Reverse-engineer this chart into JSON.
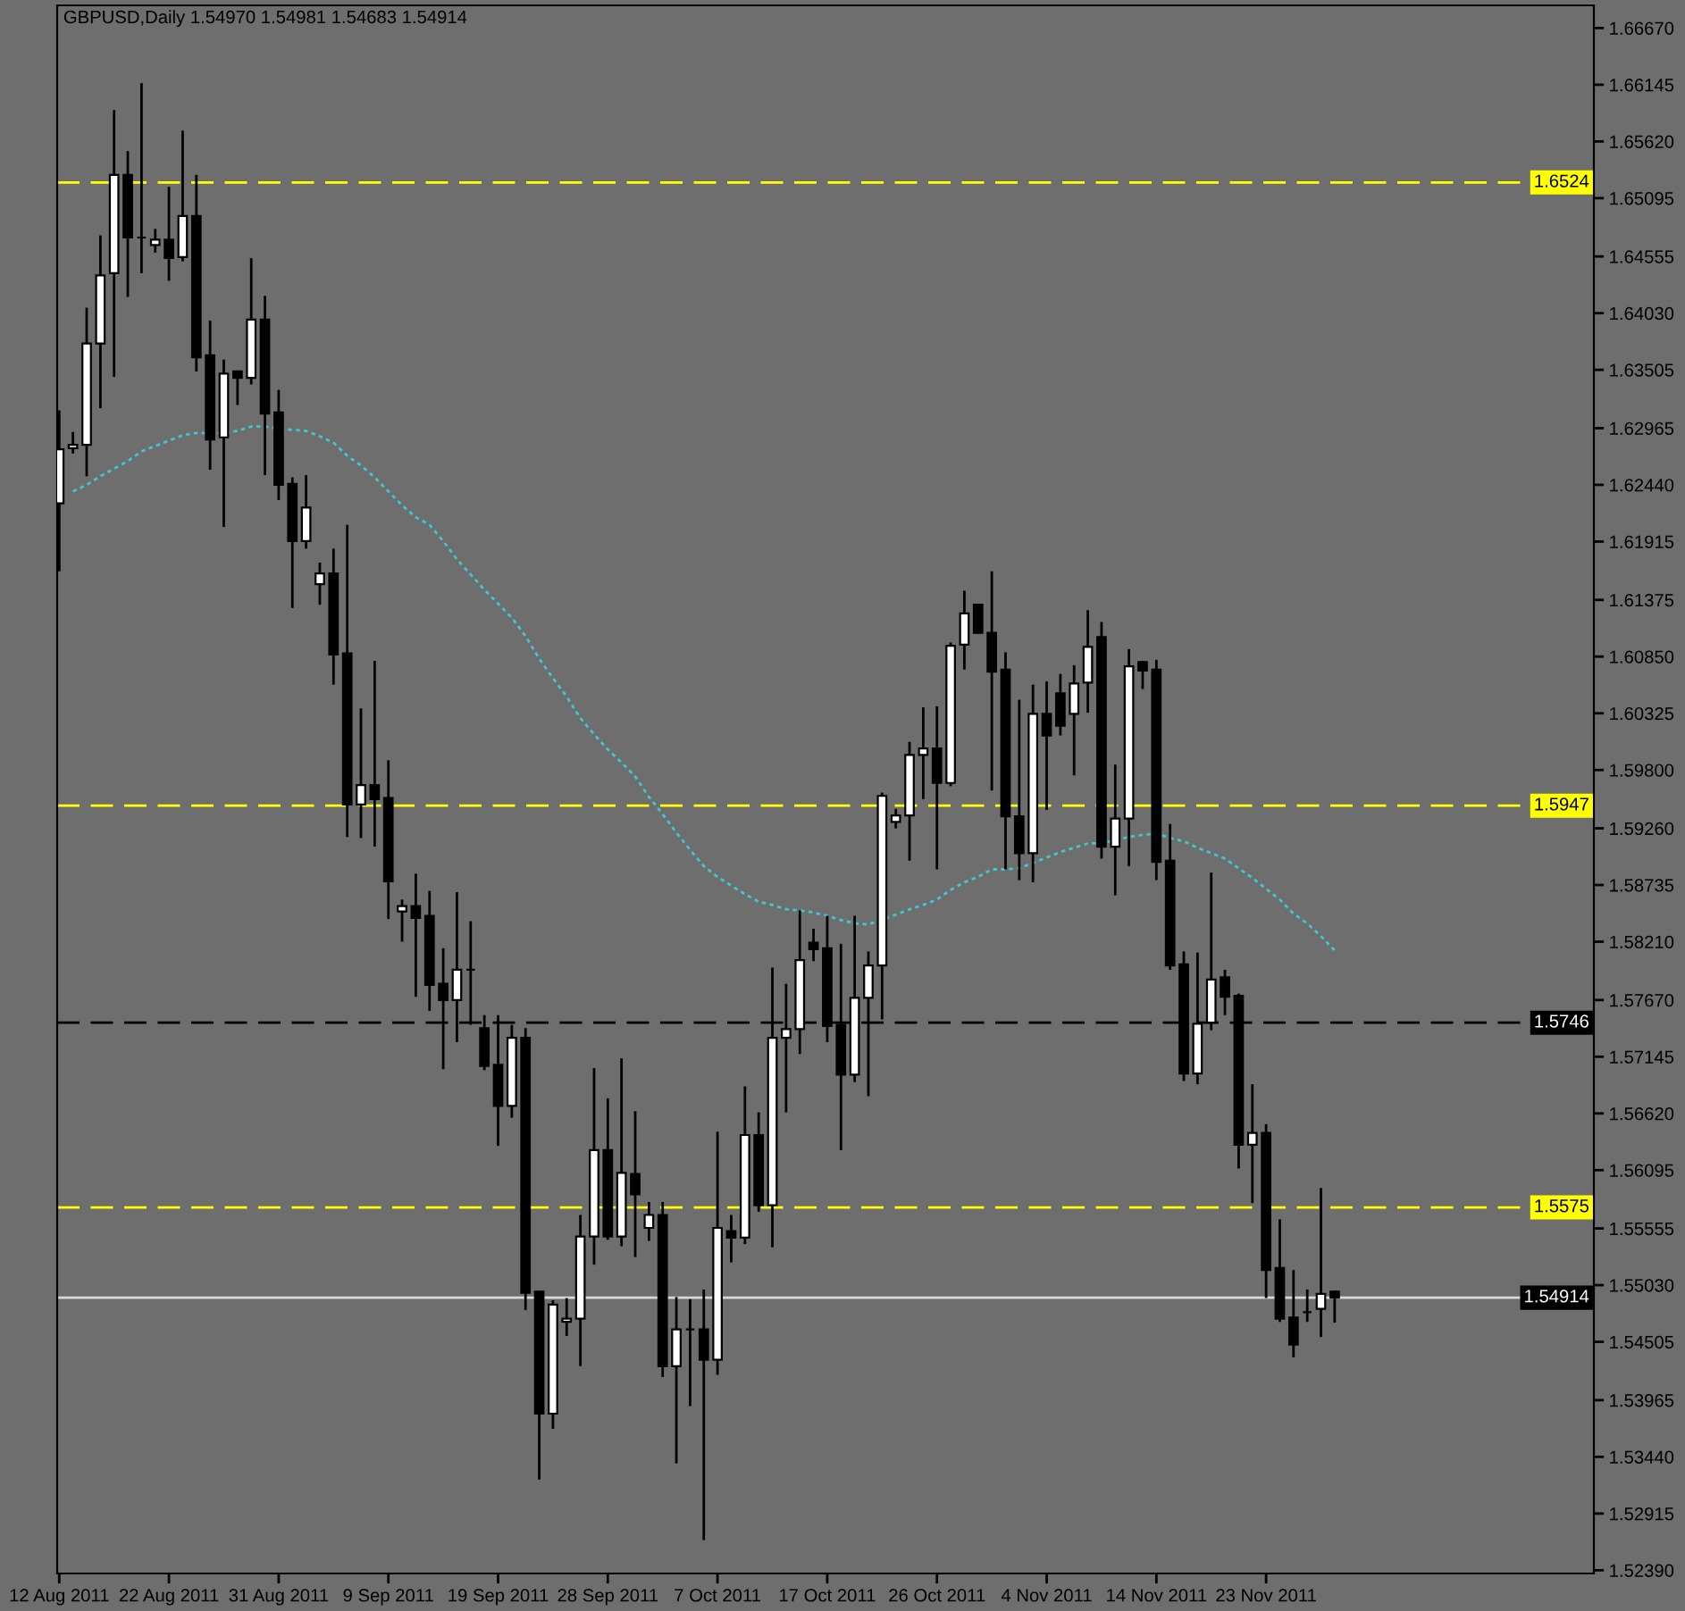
{
  "chart_data": {
    "type": "candlestick",
    "title": "GBPUSD,Daily 1.54970 1.54981 1.54683 1.54914",
    "categories": [
      "12 Aug 2011",
      null,
      null,
      null,
      null,
      null,
      null,
      null,
      "22 Aug 2011",
      null,
      null,
      null,
      null,
      null,
      null,
      null,
      "31 Aug 2011",
      null,
      null,
      null,
      null,
      null,
      null,
      null,
      "9 Sep 2011",
      null,
      null,
      null,
      null,
      null,
      null,
      null,
      "19 Sep 2011",
      null,
      null,
      null,
      null,
      null,
      null,
      null,
      "28 Sep 2011",
      null,
      null,
      null,
      null,
      null,
      null,
      null,
      "7 Oct 2011",
      null,
      null,
      null,
      null,
      null,
      null,
      null,
      "17 Oct 2011",
      null,
      null,
      null,
      null,
      null,
      null,
      null,
      "26 Oct 2011",
      null,
      null,
      null,
      null,
      null,
      null,
      null,
      "4 Nov 2011",
      null,
      null,
      null,
      null,
      null,
      null,
      null,
      "14 Nov 2011",
      null,
      null,
      null,
      null,
      null,
      null,
      null,
      "23 Nov 2011",
      null,
      null,
      null,
      null,
      null
    ],
    "ohlc": [
      [
        1.6227,
        1.6313,
        1.6164,
        1.6277
      ],
      [
        1.6278,
        1.6293,
        1.6273,
        1.6281
      ],
      [
        1.6281,
        1.6408,
        1.6252,
        1.6375
      ],
      [
        1.6375,
        1.6475,
        1.6315,
        1.6438
      ],
      [
        1.644,
        1.6591,
        1.6344,
        1.6531
      ],
      [
        1.6531,
        1.6553,
        1.6418,
        1.6473
      ],
      [
        1.6473,
        1.6616,
        1.644,
        1.6473
      ],
      [
        1.6466,
        1.6481,
        1.6459,
        1.6471
      ],
      [
        1.6471,
        1.652,
        1.6433,
        1.6454
      ],
      [
        1.6455,
        1.6572,
        1.6451,
        1.6493
      ],
      [
        1.6493,
        1.6531,
        1.6349,
        1.6362
      ],
      [
        1.6364,
        1.6396,
        1.6258,
        1.6286
      ],
      [
        1.6288,
        1.636,
        1.6205,
        1.6347
      ],
      [
        1.6349,
        1.6349,
        1.6318,
        1.6343
      ],
      [
        1.6343,
        1.6454,
        1.6337,
        1.6397
      ],
      [
        1.6397,
        1.6419,
        1.6253,
        1.631
      ],
      [
        1.6311,
        1.6332,
        1.623,
        1.6244
      ],
      [
        1.6245,
        1.6251,
        1.613,
        1.6192
      ],
      [
        1.6192,
        1.6253,
        1.6185,
        1.6223
      ],
      [
        1.6152,
        1.6172,
        1.6133,
        1.6162
      ],
      [
        1.6162,
        1.6185,
        1.6059,
        1.6087
      ],
      [
        1.6088,
        1.6207,
        1.5918,
        1.5948
      ],
      [
        1.5948,
        1.6037,
        1.5917,
        1.5966
      ],
      [
        1.5966,
        1.6081,
        1.5909,
        1.5953
      ],
      [
        1.5954,
        1.5989,
        1.5842,
        1.5877
      ],
      [
        1.5849,
        1.586,
        1.5821,
        1.5854
      ],
      [
        1.5854,
        1.5884,
        1.577,
        1.5843
      ],
      [
        1.5845,
        1.5868,
        1.5757,
        1.5781
      ],
      [
        1.5782,
        1.5815,
        1.5703,
        1.5767
      ],
      [
        1.5767,
        1.5867,
        1.5728,
        1.5795
      ],
      [
        1.5795,
        1.584,
        1.5744,
        1.5795
      ],
      [
        1.5741,
        1.5753,
        1.5702,
        1.5706
      ],
      [
        1.5707,
        1.5753,
        1.5632,
        1.5669
      ],
      [
        1.5669,
        1.5744,
        1.5658,
        1.5732
      ],
      [
        1.5732,
        1.5741,
        1.548,
        1.5496
      ],
      [
        1.5497,
        1.5497,
        1.5323,
        1.5384
      ],
      [
        1.5384,
        1.5489,
        1.537,
        1.5485
      ],
      [
        1.5469,
        1.5491,
        1.5456,
        1.5472
      ],
      [
        1.5472,
        1.5568,
        1.5428,
        1.5548
      ],
      [
        1.5548,
        1.5704,
        1.5522,
        1.5628
      ],
      [
        1.5628,
        1.5676,
        1.5545,
        1.5548
      ],
      [
        1.5548,
        1.5713,
        1.5539,
        1.5607
      ],
      [
        1.5606,
        1.5664,
        1.5529,
        1.5587
      ],
      [
        1.5556,
        1.558,
        1.5544,
        1.5568
      ],
      [
        1.5568,
        1.558,
        1.5418,
        1.5428
      ],
      [
        1.5428,
        1.5492,
        1.5338,
        1.5462
      ],
      [
        1.5462,
        1.549,
        1.5391,
        1.5462
      ],
      [
        1.5462,
        1.5499,
        1.5267,
        1.5434
      ],
      [
        1.5434,
        1.5645,
        1.542,
        1.5556
      ],
      [
        1.5553,
        1.5568,
        1.5524,
        1.5547
      ],
      [
        1.5547,
        1.5687,
        1.5541,
        1.5642
      ],
      [
        1.5642,
        1.5663,
        1.5571,
        1.5577
      ],
      [
        1.5577,
        1.5797,
        1.5538,
        1.5732
      ],
      [
        1.5732,
        1.5782,
        1.5663,
        1.574
      ],
      [
        1.574,
        1.585,
        1.5717,
        1.5804
      ],
      [
        1.582,
        1.5833,
        1.5803,
        1.5814
      ],
      [
        1.5815,
        1.5845,
        1.5728,
        1.5743
      ],
      [
        1.5744,
        1.5819,
        1.5628,
        1.5698
      ],
      [
        1.5698,
        1.5845,
        1.5691,
        1.5769
      ],
      [
        1.5769,
        1.5812,
        1.5678,
        1.5799
      ],
      [
        1.5799,
        1.5959,
        1.5749,
        1.5956
      ],
      [
        1.5932,
        1.5944,
        1.5926,
        1.5938
      ],
      [
        1.5938,
        1.6006,
        1.5896,
        1.5994
      ],
      [
        1.5994,
        1.6038,
        1.5953,
        1.6
      ],
      [
        1.6,
        1.6039,
        1.5888,
        1.5968
      ],
      [
        1.5968,
        1.6098,
        1.5965,
        1.6095
      ],
      [
        1.6096,
        1.6146,
        1.6073,
        1.6125
      ],
      [
        1.6133,
        1.6134,
        1.6106,
        1.6107
      ],
      [
        1.6107,
        1.6164,
        1.5961,
        1.6071
      ],
      [
        1.6073,
        1.6089,
        1.5888,
        1.5937
      ],
      [
        1.5937,
        1.6045,
        1.5878,
        1.5903
      ],
      [
        1.5903,
        1.6059,
        1.5876,
        1.6032
      ],
      [
        1.6032,
        1.6062,
        1.5943,
        1.6012
      ],
      [
        1.6051,
        1.6069,
        1.6012,
        1.6021
      ],
      [
        1.6032,
        1.6077,
        1.5975,
        1.606
      ],
      [
        1.6061,
        1.6128,
        1.6033,
        1.6094
      ],
      [
        1.6103,
        1.6117,
        1.5898,
        1.5909
      ],
      [
        1.5909,
        1.5985,
        1.5864,
        1.5935
      ],
      [
        1.5935,
        1.6092,
        1.5891,
        1.6076
      ],
      [
        1.608,
        1.6081,
        1.6055,
        1.6072
      ],
      [
        1.6073,
        1.6082,
        1.5878,
        1.5895
      ],
      [
        1.5896,
        1.593,
        1.5795,
        1.5799
      ],
      [
        1.58,
        1.5812,
        1.5692,
        1.5699
      ],
      [
        1.5699,
        1.5811,
        1.5689,
        1.5745
      ],
      [
        1.5746,
        1.5885,
        1.5739,
        1.5786
      ],
      [
        1.5788,
        1.5795,
        1.5753,
        1.577
      ],
      [
        1.5771,
        1.5773,
        1.5611,
        1.5633
      ],
      [
        1.5633,
        1.5689,
        1.5579,
        1.5644
      ],
      [
        1.5644,
        1.5652,
        1.5491,
        1.5517
      ],
      [
        1.5519,
        1.5564,
        1.5469,
        1.5472
      ],
      [
        1.5473,
        1.5517,
        1.5436,
        1.5448
      ],
      [
        1.5478,
        1.5499,
        1.5469,
        1.5478
      ],
      [
        1.5481,
        1.5593,
        1.5455,
        1.5495
      ],
      [
        1.5497,
        1.54981,
        1.54683,
        1.54914
      ]
    ],
    "colors": [
      "#ffffff",
      "#ffffff",
      "#ffffff",
      "#ffffff",
      "#ffffff",
      "#000000",
      "#000000",
      "#ffffff",
      "#000000",
      "#ffffff",
      "#000000",
      "#000000",
      "#ffffff",
      "#000000",
      "#ffffff",
      "#000000",
      "#000000",
      "#000000",
      "#ffffff",
      "#ffffff",
      "#000000",
      "#000000",
      "#ffffff",
      "#000000",
      "#000000",
      "#ffffff",
      "#000000",
      "#000000",
      "#000000",
      "#ffffff",
      "#000000",
      "#000000",
      "#000000",
      "#ffffff",
      "#000000",
      "#000000",
      "#ffffff",
      "#ffffff",
      "#ffffff",
      "#ffffff",
      "#000000",
      "#ffffff",
      "#000000",
      "#ffffff",
      "#000000",
      "#ffffff",
      "#000000",
      "#000000",
      "#ffffff",
      "#000000",
      "#ffffff",
      "#000000",
      "#ffffff",
      "#ffffff",
      "#ffffff",
      "#000000",
      "#000000",
      "#000000",
      "#ffffff",
      "#ffffff",
      "#ffffff",
      "#ffffff",
      "#ffffff",
      "#ffffff",
      "#000000",
      "#ffffff",
      "#ffffff",
      "#000000",
      "#000000",
      "#000000",
      "#000000",
      "#ffffff",
      "#000000",
      "#000000",
      "#ffffff",
      "#ffffff",
      "#000000",
      "#ffffff",
      "#ffffff",
      "#000000",
      "#000000",
      "#000000",
      "#000000",
      "#ffffff",
      "#ffffff",
      "#000000",
      "#000000",
      "#ffffff",
      "#000000",
      "#000000",
      "#000000",
      "#000000",
      "#ffffff",
      "#000000"
    ],
    "series": [
      {
        "type": "line",
        "color": "#40c8d0",
        "line_style": "dotted",
        "values": [
          null,
          1.6238,
          1.6244,
          1.6252,
          1.6259,
          1.6266,
          1.6275,
          1.628,
          1.6285,
          1.629,
          1.6292,
          1.6292,
          1.6292,
          1.6294,
          1.6298,
          1.6298,
          1.6296,
          1.6295,
          1.6294,
          1.6289,
          1.6283,
          1.6271,
          1.6262,
          1.6251,
          1.6238,
          1.6225,
          1.6214,
          1.6207,
          1.6192,
          1.6175,
          1.6161,
          1.6147,
          1.6134,
          1.6121,
          1.6104,
          1.6083,
          1.6065,
          1.6048,
          1.6028,
          1.6013,
          1.5999,
          1.5987,
          1.5974,
          1.5955,
          1.5939,
          1.5922,
          1.5906,
          1.5891,
          1.5881,
          1.5873,
          1.5865,
          1.5858,
          1.5855,
          1.5851,
          1.585,
          1.5848,
          1.5845,
          1.5841,
          1.5838,
          1.5837,
          null,
          1.5846,
          1.5851,
          1.5855,
          1.586,
          1.5869,
          1.5876,
          1.5881,
          1.5888,
          1.5888,
          1.5889,
          1.5894,
          1.5899,
          1.5904,
          1.5908,
          1.5912,
          1.5912,
          1.5915,
          1.5918,
          1.592,
          1.5921,
          1.5917,
          1.5914,
          1.5908,
          1.5903,
          1.5898,
          1.5889,
          1.588,
          1.587,
          1.586,
          1.5847,
          1.5838,
          1.5826,
          1.5813
        ]
      }
    ],
    "ylim": [
      1.5236,
      1.6688
    ],
    "yticks": [
      {
        "value": 1.6667,
        "label": "1.66670"
      },
      {
        "value": 1.66145,
        "label": "1.66145"
      },
      {
        "value": 1.6562,
        "label": "1.65620"
      },
      {
        "value": 1.65095,
        "label": "1.65095"
      },
      {
        "value": 1.64555,
        "label": "1.64555"
      },
      {
        "value": 1.6403,
        "label": "1.64030"
      },
      {
        "value": 1.63505,
        "label": "1.63505"
      },
      {
        "value": 1.62965,
        "label": "1.62965"
      },
      {
        "value": 1.6244,
        "label": "1.62440"
      },
      {
        "value": 1.61915,
        "label": "1.61915"
      },
      {
        "value": 1.61375,
        "label": "1.61375"
      },
      {
        "value": 1.6085,
        "label": "1.60850"
      },
      {
        "value": 1.60325,
        "label": "1.60325"
      },
      {
        "value": 1.598,
        "label": "1.59800"
      },
      {
        "value": 1.5926,
        "label": "1.59260"
      },
      {
        "value": 1.58735,
        "label": "1.58735"
      },
      {
        "value": 1.5821,
        "label": "1.58210"
      },
      {
        "value": 1.5767,
        "label": "1.57670"
      },
      {
        "value": 1.57145,
        "label": "1.57145"
      },
      {
        "value": 1.5662,
        "label": "1.56620"
      },
      {
        "value": 1.56095,
        "label": "1.56095"
      },
      {
        "value": 1.55555,
        "label": "1.55555"
      },
      {
        "value": 1.5503,
        "label": "1.55030"
      },
      {
        "value": 1.54505,
        "label": "1.54505"
      },
      {
        "value": 1.53965,
        "label": "1.53965"
      },
      {
        "value": 1.5344,
        "label": "1.53440"
      },
      {
        "value": 1.52915,
        "label": "1.52915"
      },
      {
        "value": 1.5239,
        "label": "1.52390"
      }
    ],
    "ref_lines": [
      {
        "axis": "y",
        "value": 1.6524,
        "label": "1.6524",
        "color": "#ffff00",
        "line_style": "dashed"
      },
      {
        "axis": "y",
        "value": 1.5947,
        "label": "1.5947",
        "color": "#ffff00",
        "line_style": "dashed"
      },
      {
        "axis": "y",
        "value": 1.5746,
        "label": "1.5746",
        "color": "#000000",
        "line_style": "dashed"
      },
      {
        "axis": "y",
        "value": 1.5575,
        "label": "1.5575",
        "color": "#ffff00",
        "line_style": "dashed"
      },
      {
        "axis": "y",
        "value": 1.54914,
        "label": "1.54914",
        "color": "#d8d8d8",
        "line_style": "solid"
      }
    ]
  }
}
